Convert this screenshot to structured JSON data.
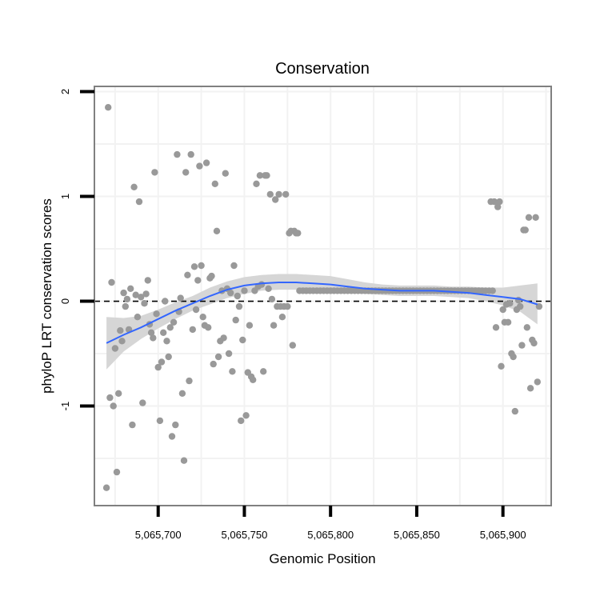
{
  "chart_data": {
    "type": "scatter",
    "title": "Conservation",
    "xlabel": "Genomic Position",
    "ylabel": "phyloP LRT conservation scores",
    "xlim": [
      5065663,
      5065928
    ],
    "ylim": [
      -1.95,
      2.05
    ],
    "x_ticks": [
      5065700,
      5065750,
      5065800,
      5065850,
      5065900
    ],
    "x_tick_labels": [
      "5,065,700",
      "5,065,750",
      "5,065,800",
      "5,065,850",
      "5,065,900"
    ],
    "y_ticks": [
      -1,
      0,
      1,
      2
    ],
    "y_tick_labels": [
      "-1",
      "0",
      "1",
      "2"
    ],
    "reference_line": {
      "y": 0,
      "style": "dashed"
    },
    "colors": {
      "points": "#999999",
      "smooth": "#3366FF",
      "band": "#d6d6d6",
      "grid": "#f2f2f2",
      "border": "#808080"
    },
    "smooth": {
      "x": [
        5065670,
        5065680,
        5065690,
        5065700,
        5065710,
        5065720,
        5065730,
        5065740,
        5065750,
        5065760,
        5065770,
        5065780,
        5065790,
        5065800,
        5065810,
        5065820,
        5065830,
        5065840,
        5065850,
        5065860,
        5065870,
        5065880,
        5065890,
        5065900,
        5065910,
        5065920
      ],
      "y": [
        -0.4,
        -0.32,
        -0.25,
        -0.17,
        -0.09,
        -0.02,
        0.05,
        0.11,
        0.15,
        0.17,
        0.18,
        0.18,
        0.17,
        0.16,
        0.14,
        0.12,
        0.11,
        0.1,
        0.1,
        0.1,
        0.09,
        0.08,
        0.06,
        0.04,
        0.02,
        -0.03
      ],
      "lower": [
        -0.65,
        -0.48,
        -0.36,
        -0.26,
        -0.17,
        -0.09,
        -0.03,
        0.03,
        0.07,
        0.1,
        0.11,
        0.11,
        0.1,
        0.1,
        0.08,
        0.07,
        0.06,
        0.05,
        0.05,
        0.05,
        0.04,
        0.03,
        0.0,
        -0.04,
        -0.1,
        -0.22
      ],
      "upper": [
        -0.15,
        -0.16,
        -0.14,
        -0.08,
        -0.01,
        0.05,
        0.13,
        0.19,
        0.23,
        0.25,
        0.26,
        0.26,
        0.25,
        0.24,
        0.21,
        0.18,
        0.16,
        0.15,
        0.15,
        0.15,
        0.14,
        0.14,
        0.13,
        0.13,
        0.15,
        0.17
      ]
    },
    "points": [
      [
        5065670,
        -1.78
      ],
      [
        5065671,
        1.85
      ],
      [
        5065672,
        -0.92
      ],
      [
        5065673,
        0.18
      ],
      [
        5065674,
        -1.0
      ],
      [
        5065675,
        -0.45
      ],
      [
        5065676,
        -1.63
      ],
      [
        5065677,
        -0.88
      ],
      [
        5065678,
        -0.28
      ],
      [
        5065679,
        -0.38
      ],
      [
        5065680,
        0.08
      ],
      [
        5065681,
        -0.05
      ],
      [
        5065682,
        0.02
      ],
      [
        5065683,
        -0.27
      ],
      [
        5065684,
        0.12
      ],
      [
        5065685,
        -1.18
      ],
      [
        5065686,
        1.09
      ],
      [
        5065687,
        0.06
      ],
      [
        5065688,
        -0.15
      ],
      [
        5065689,
        0.95
      ],
      [
        5065690,
        0.04
      ],
      [
        5065691,
        -0.97
      ],
      [
        5065692,
        -0.02
      ],
      [
        5065693,
        0.07
      ],
      [
        5065694,
        0.2
      ],
      [
        5065695,
        -0.22
      ],
      [
        5065696,
        -0.3
      ],
      [
        5065697,
        -0.35
      ],
      [
        5065698,
        1.23
      ],
      [
        5065699,
        -0.12
      ],
      [
        5065700,
        -0.63
      ],
      [
        5065701,
        -1.14
      ],
      [
        5065702,
        -0.58
      ],
      [
        5065703,
        -0.3
      ],
      [
        5065704,
        0.0
      ],
      [
        5065705,
        -0.38
      ],
      [
        5065706,
        -0.53
      ],
      [
        5065707,
        -0.25
      ],
      [
        5065708,
        -1.29
      ],
      [
        5065709,
        -0.2
      ],
      [
        5065710,
        -1.18
      ],
      [
        5065711,
        1.4
      ],
      [
        5065712,
        -0.1
      ],
      [
        5065713,
        0.03
      ],
      [
        5065714,
        -0.88
      ],
      [
        5065715,
        -1.52
      ],
      [
        5065716,
        1.23
      ],
      [
        5065717,
        0.25
      ],
      [
        5065718,
        -0.76
      ],
      [
        5065719,
        1.4
      ],
      [
        5065720,
        -0.27
      ],
      [
        5065721,
        0.33
      ],
      [
        5065722,
        -0.08
      ],
      [
        5065723,
        0.2
      ],
      [
        5065724,
        1.29
      ],
      [
        5065725,
        0.34
      ],
      [
        5065726,
        -0.15
      ],
      [
        5065727,
        -0.23
      ],
      [
        5065728,
        1.32
      ],
      [
        5065729,
        -0.25
      ],
      [
        5065730,
        0.22
      ],
      [
        5065731,
        0.24
      ],
      [
        5065732,
        -0.6
      ],
      [
        5065733,
        1.12
      ],
      [
        5065734,
        0.67
      ],
      [
        5065735,
        -0.53
      ],
      [
        5065736,
        -0.38
      ],
      [
        5065737,
        0.1
      ],
      [
        5065738,
        -0.35
      ],
      [
        5065739,
        1.22
      ],
      [
        5065740,
        0.12
      ],
      [
        5065741,
        -0.5
      ],
      [
        5065742,
        0.08
      ],
      [
        5065743,
        -0.67
      ],
      [
        5065744,
        0.34
      ],
      [
        5065745,
        -0.18
      ],
      [
        5065746,
        0.05
      ],
      [
        5065747,
        -0.05
      ],
      [
        5065748,
        -1.14
      ],
      [
        5065749,
        -0.37
      ],
      [
        5065750,
        0.1
      ],
      [
        5065751,
        -1.09
      ],
      [
        5065752,
        -0.68
      ],
      [
        5065753,
        -0.23
      ],
      [
        5065754,
        -0.72
      ],
      [
        5065755,
        -0.75
      ],
      [
        5065756,
        0.1
      ],
      [
        5065757,
        1.12
      ],
      [
        5065758,
        0.14
      ],
      [
        5065759,
        1.2
      ],
      [
        5065760,
        0.16
      ],
      [
        5065761,
        -0.67
      ],
      [
        5065762,
        1.2
      ],
      [
        5065763,
        1.2
      ],
      [
        5065764,
        0.12
      ],
      [
        5065765,
        1.02
      ],
      [
        5065766,
        0.02
      ],
      [
        5065767,
        -0.23
      ],
      [
        5065768,
        0.97
      ],
      [
        5065769,
        -0.05
      ],
      [
        5065770,
        1.02
      ],
      [
        5065771,
        -0.05
      ],
      [
        5065772,
        -0.15
      ],
      [
        5065773,
        -0.05
      ],
      [
        5065774,
        1.02
      ],
      [
        5065775,
        -0.05
      ],
      [
        5065776,
        0.65
      ],
      [
        5065777,
        0.67
      ],
      [
        5065778,
        -0.42
      ],
      [
        5065779,
        0.67
      ],
      [
        5065780,
        0.65
      ],
      [
        5065781,
        0.65
      ],
      [
        5065782,
        0.1
      ],
      [
        5065784,
        0.1
      ],
      [
        5065786,
        0.1
      ],
      [
        5065788,
        0.1
      ],
      [
        5065790,
        0.1
      ],
      [
        5065792,
        0.1
      ],
      [
        5065794,
        0.1
      ],
      [
        5065796,
        0.1
      ],
      [
        5065798,
        0.1
      ],
      [
        5065800,
        0.1
      ],
      [
        5065802,
        0.1
      ],
      [
        5065804,
        0.1
      ],
      [
        5065806,
        0.1
      ],
      [
        5065808,
        0.1
      ],
      [
        5065810,
        0.1
      ],
      [
        5065812,
        0.1
      ],
      [
        5065814,
        0.1
      ],
      [
        5065816,
        0.1
      ],
      [
        5065818,
        0.1
      ],
      [
        5065820,
        0.1
      ],
      [
        5065822,
        0.1
      ],
      [
        5065824,
        0.1
      ],
      [
        5065826,
        0.1
      ],
      [
        5065828,
        0.1
      ],
      [
        5065830,
        0.1
      ],
      [
        5065832,
        0.1
      ],
      [
        5065834,
        0.1
      ],
      [
        5065836,
        0.1
      ],
      [
        5065838,
        0.1
      ],
      [
        5065840,
        0.1
      ],
      [
        5065842,
        0.1
      ],
      [
        5065844,
        0.1
      ],
      [
        5065846,
        0.1
      ],
      [
        5065848,
        0.1
      ],
      [
        5065850,
        0.1
      ],
      [
        5065852,
        0.1
      ],
      [
        5065854,
        0.1
      ],
      [
        5065856,
        0.1
      ],
      [
        5065858,
        0.1
      ],
      [
        5065860,
        0.1
      ],
      [
        5065862,
        0.1
      ],
      [
        5065864,
        0.1
      ],
      [
        5065866,
        0.1
      ],
      [
        5065868,
        0.1
      ],
      [
        5065870,
        0.1
      ],
      [
        5065872,
        0.1
      ],
      [
        5065874,
        0.1
      ],
      [
        5065876,
        0.1
      ],
      [
        5065878,
        0.1
      ],
      [
        5065880,
        0.1
      ],
      [
        5065882,
        0.1
      ],
      [
        5065884,
        0.1
      ],
      [
        5065886,
        0.1
      ],
      [
        5065888,
        0.1
      ],
      [
        5065890,
        0.1
      ],
      [
        5065892,
        0.1
      ],
      [
        5065893,
        0.95
      ],
      [
        5065894,
        0.1
      ],
      [
        5065895,
        0.95
      ],
      [
        5065896,
        -0.25
      ],
      [
        5065897,
        0.9
      ],
      [
        5065898,
        0.95
      ],
      [
        5065899,
        -0.62
      ],
      [
        5065900,
        -0.08
      ],
      [
        5065901,
        -0.2
      ],
      [
        5065902,
        -0.03
      ],
      [
        5065903,
        -0.2
      ],
      [
        5065904,
        -0.02
      ],
      [
        5065905,
        -0.5
      ],
      [
        5065906,
        -0.53
      ],
      [
        5065907,
        -1.05
      ],
      [
        5065908,
        -0.08
      ],
      [
        5065909,
        0.01
      ],
      [
        5065910,
        -0.05
      ],
      [
        5065911,
        -0.42
      ],
      [
        5065912,
        0.68
      ],
      [
        5065913,
        0.68
      ],
      [
        5065914,
        -0.25
      ],
      [
        5065915,
        0.8
      ],
      [
        5065916,
        -0.83
      ],
      [
        5065917,
        -0.37
      ],
      [
        5065918,
        -0.4
      ],
      [
        5065919,
        0.8
      ],
      [
        5065920,
        -0.77
      ],
      [
        5065921,
        -0.05
      ]
    ]
  }
}
